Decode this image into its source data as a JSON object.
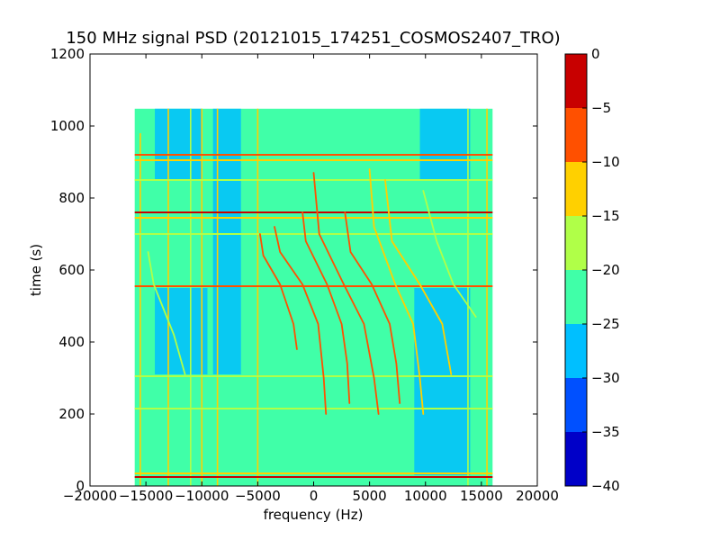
{
  "chart_data": {
    "type": "heatmap",
    "title": "150 MHz signal PSD (20121015_174251_COSMOS2407_TRO)",
    "xlabel": "frequency (Hz)",
    "ylabel": "time (s)",
    "xlim": [
      -20000,
      20000
    ],
    "ylim": [
      0,
      1200
    ],
    "x_ticks": [
      -20000,
      -15000,
      -10000,
      -5000,
      0,
      5000,
      10000,
      15000,
      20000
    ],
    "y_ticks": [
      0,
      200,
      400,
      600,
      800,
      1000,
      1200
    ],
    "data_extent": {
      "x": [
        -16000,
        16000
      ],
      "y": [
        0,
        1048
      ]
    },
    "background_level": [
      -25,
      -20
    ],
    "colorbar": {
      "levels": [
        -40,
        -35,
        -30,
        -25,
        -20,
        -15,
        -10,
        -5,
        0
      ],
      "colors": [
        "#0000c8",
        "#0050ff",
        "#00bfff",
        "#40ffa8",
        "#b0ff48",
        "#ffd000",
        "#ff5000",
        "#c80000"
      ]
    },
    "low_power_bands": [
      {
        "x": [
          -14200,
          -9500
        ],
        "y": [
          310,
          550
        ],
        "level": -27.5
      },
      {
        "x": [
          -14200,
          -10000
        ],
        "y": [
          850,
          1048
        ],
        "level": -27.5
      },
      {
        "x": [
          -9000,
          -6500
        ],
        "y": [
          310,
          1048
        ],
        "level": -27.5
      },
      {
        "x": [
          9000,
          14000
        ],
        "y": [
          30,
          550
        ],
        "level": -27.5
      },
      {
        "x": [
          9500,
          14000
        ],
        "y": [
          850,
          1048
        ],
        "level": -27.5
      }
    ],
    "horizontal_bands": [
      {
        "y": 25,
        "x": [
          -16000,
          16000
        ],
        "level": -2.5
      },
      {
        "y": 35,
        "x": [
          -16000,
          16000
        ],
        "level": -12.5
      },
      {
        "y": 215,
        "x": [
          -16000,
          16000
        ],
        "level": -17.5
      },
      {
        "y": 305,
        "x": [
          -16000,
          16000
        ],
        "level": -17.5
      },
      {
        "y": 555,
        "x": [
          -16000,
          16000
        ],
        "level": -7.5
      },
      {
        "y": 700,
        "x": [
          -16000,
          16000
        ],
        "level": -17.5
      },
      {
        "y": 745,
        "x": [
          -16000,
          16000
        ],
        "level": -12.5
      },
      {
        "y": 760,
        "x": [
          -16000,
          16000
        ],
        "level": -2.5
      },
      {
        "y": 850,
        "x": [
          -16000,
          16000
        ],
        "level": -17.5
      },
      {
        "y": 905,
        "x": [
          -16000,
          16000
        ],
        "level": -12.5
      },
      {
        "y": 920,
        "x": [
          -16000,
          16000
        ],
        "level": -7.5
      }
    ],
    "vertical_lines": [
      {
        "x": -15500,
        "y": [
          0,
          980
        ],
        "level": -12.5
      },
      {
        "x": -13000,
        "y": [
          0,
          1048
        ],
        "level": -12.5
      },
      {
        "x": -11000,
        "y": [
          0,
          1048
        ],
        "level": -17.5
      },
      {
        "x": -10000,
        "y": [
          0,
          1048
        ],
        "level": -12.5
      },
      {
        "x": -8600,
        "y": [
          0,
          1048
        ],
        "level": -12.5
      },
      {
        "x": -5000,
        "y": [
          0,
          1048
        ],
        "level": -12.5
      },
      {
        "x": 13800,
        "y": [
          0,
          1048
        ],
        "level": -17.5
      },
      {
        "x": 15500,
        "y": [
          0,
          1048
        ],
        "level": -12.5
      }
    ],
    "doppler_tracks": [
      {
        "points": [
          [
            -14800,
            650
          ],
          [
            -14300,
            560
          ],
          [
            -12500,
            420
          ],
          [
            -11500,
            310
          ]
        ],
        "level": -17.5
      },
      {
        "points": [
          [
            -4800,
            700
          ],
          [
            -4500,
            640
          ],
          [
            -3000,
            560
          ],
          [
            -1800,
            450
          ],
          [
            -1500,
            380
          ]
        ],
        "level": -5
      },
      {
        "points": [
          [
            -3500,
            720
          ],
          [
            -3000,
            650
          ],
          [
            -1000,
            560
          ],
          [
            400,
            450
          ],
          [
            900,
            300
          ],
          [
            1100,
            200
          ]
        ],
        "level": -5
      },
      {
        "points": [
          [
            -1000,
            760
          ],
          [
            -700,
            680
          ],
          [
            1200,
            560
          ],
          [
            2500,
            450
          ],
          [
            3000,
            340
          ],
          [
            3200,
            230
          ]
        ],
        "level": -5
      },
      {
        "points": [
          [
            0,
            870
          ],
          [
            500,
            700
          ],
          [
            2700,
            560
          ],
          [
            4500,
            450
          ],
          [
            5400,
            300
          ],
          [
            5800,
            200
          ]
        ],
        "level": -5
      },
      {
        "points": [
          [
            2800,
            760
          ],
          [
            3300,
            650
          ],
          [
            5200,
            560
          ],
          [
            6800,
            450
          ],
          [
            7400,
            340
          ],
          [
            7700,
            230
          ]
        ],
        "level": -5
      },
      {
        "points": [
          [
            5000,
            880
          ],
          [
            5400,
            720
          ],
          [
            7300,
            560
          ],
          [
            8900,
            450
          ],
          [
            9500,
            300
          ],
          [
            9800,
            200
          ]
        ],
        "level": -10
      },
      {
        "points": [
          [
            6400,
            850
          ],
          [
            7000,
            680
          ],
          [
            9500,
            560
          ],
          [
            11500,
            450
          ],
          [
            12300,
            310
          ]
        ],
        "level": -12.5
      },
      {
        "points": [
          [
            9800,
            820
          ],
          [
            11000,
            680
          ],
          [
            12500,
            560
          ],
          [
            14500,
            470
          ]
        ],
        "level": -17.5
      }
    ]
  }
}
